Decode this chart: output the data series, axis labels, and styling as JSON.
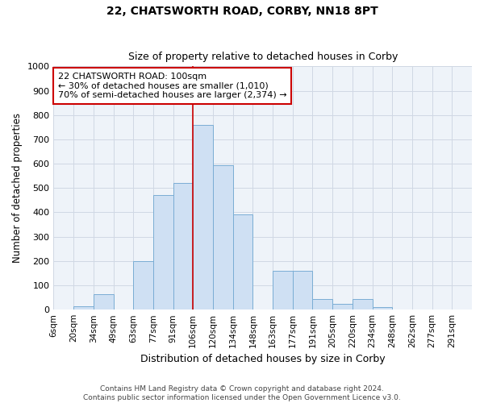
{
  "title": "22, CHATSWORTH ROAD, CORBY, NN18 8PT",
  "subtitle": "Size of property relative to detached houses in Corby",
  "xlabel": "Distribution of detached houses by size in Corby",
  "ylabel": "Number of detached properties",
  "footer_line1": "Contains HM Land Registry data © Crown copyright and database right 2024.",
  "footer_line2": "Contains public sector information licensed under the Open Government Licence v3.0.",
  "bin_labels": [
    "6sqm",
    "20sqm",
    "34sqm",
    "49sqm",
    "63sqm",
    "77sqm",
    "91sqm",
    "106sqm",
    "120sqm",
    "134sqm",
    "148sqm",
    "163sqm",
    "177sqm",
    "191sqm",
    "205sqm",
    "220sqm",
    "234sqm",
    "248sqm",
    "262sqm",
    "277sqm",
    "291sqm"
  ],
  "bar_values": [
    0,
    15,
    65,
    0,
    200,
    470,
    520,
    760,
    595,
    390,
    0,
    160,
    160,
    45,
    25,
    45,
    10,
    0,
    0,
    0,
    0
  ],
  "bar_color": "#cfe0f3",
  "bar_edge_color": "#7aadd4",
  "vline_index": 7,
  "vline_color": "#cc0000",
  "ylim": [
    0,
    1000
  ],
  "yticks": [
    0,
    100,
    200,
    300,
    400,
    500,
    600,
    700,
    800,
    900,
    1000
  ],
  "annotation_title": "22 CHATSWORTH ROAD: 100sqm",
  "annotation_line1": "← 30% of detached houses are smaller (1,010)",
  "annotation_line2": "70% of semi-detached houses are larger (2,374) →",
  "annotation_box_color": "#ffffff",
  "annotation_box_edge": "#cc0000",
  "grid_color": "#d0d8e4",
  "bg_color": "#eef3f9"
}
